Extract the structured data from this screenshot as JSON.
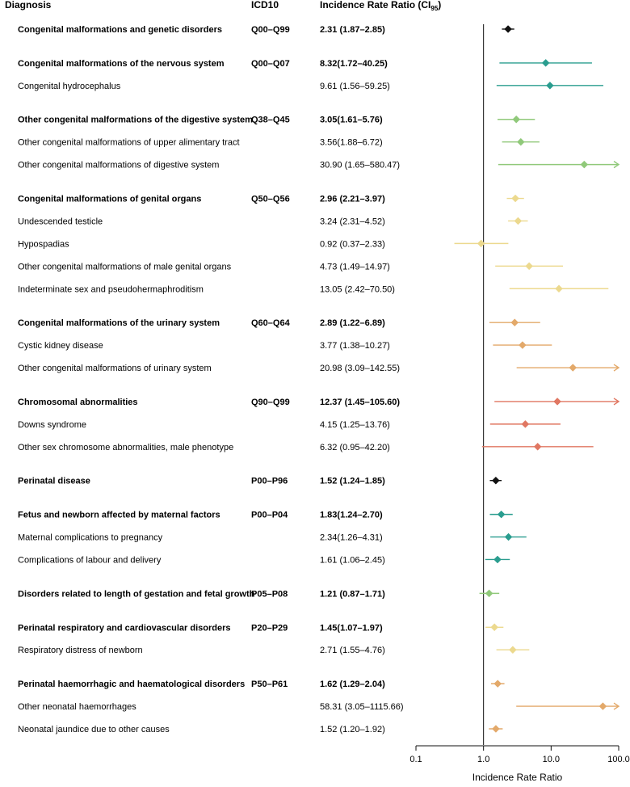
{
  "chart_data": {
    "type": "forest",
    "headers": {
      "diagnosis": "Diagnosis",
      "icd10": "ICD10",
      "irr": "Incidence Rate Ratio (CI",
      "irr_sub": "95",
      "irr_close": ")"
    },
    "x_axis": {
      "label": "Incidence Rate Ratio",
      "scale": "log10",
      "range": [
        0.1,
        100
      ],
      "reference_line": 1,
      "ticks": [
        0.1,
        1,
        10,
        100
      ],
      "tick_labels": [
        "0.1",
        "1.0",
        "10.0",
        "100.0"
      ]
    },
    "colors": {
      "total": "#111111",
      "teal": "#2a9d8f",
      "green": "#90c97a",
      "yellow": "#ecd98e",
      "orange": "#e3a96a",
      "red": "#e07762"
    },
    "rows": [
      {
        "label": "Congenital malformations and genetic disorders",
        "icd": "Q00–Q99",
        "ci_text": "2.31 (1.87–2.85)",
        "est": 2.31,
        "lo": 1.87,
        "hi": 2.85,
        "bold": true,
        "color": "total"
      },
      {
        "gap": true
      },
      {
        "label": "Congenital malformations of the nervous system",
        "icd": "Q00–Q07",
        "ci_text": "8.32(1.72–40.25)",
        "est": 8.32,
        "lo": 1.72,
        "hi": 40.25,
        "bold": true,
        "color": "teal"
      },
      {
        "label": "Congenital hydrocephalus",
        "icd": "",
        "ci_text": "9.61 (1.56–59.25)",
        "est": 9.61,
        "lo": 1.56,
        "hi": 59.25,
        "bold": false,
        "color": "teal"
      },
      {
        "gap": true
      },
      {
        "label": "Other congenital malformations of the digestive system",
        "icd": "Q38–Q45",
        "ci_text": "3.05(1.61–5.76)",
        "est": 3.05,
        "lo": 1.61,
        "hi": 5.76,
        "bold": true,
        "color": "green"
      },
      {
        "label": "Other congenital malformations of upper alimentary tract",
        "icd": "",
        "ci_text": "3.56(1.88–6.72)",
        "est": 3.56,
        "lo": 1.88,
        "hi": 6.72,
        "bold": false,
        "color": "green"
      },
      {
        "label": "Other congenital malformations of digestive system",
        "icd": "",
        "ci_text": "30.90 (1.65–580.47)",
        "est": 30.9,
        "lo": 1.65,
        "hi": 580.47,
        "bold": false,
        "color": "green"
      },
      {
        "gap": true
      },
      {
        "label": "Congenital malformations of genital organs",
        "icd": "Q50–Q56",
        "ci_text": "2.96 (2.21–3.97)",
        "est": 2.96,
        "lo": 2.21,
        "hi": 3.97,
        "bold": true,
        "color": "yellow"
      },
      {
        "label": "Undescended testicle",
        "icd": "",
        "ci_text": "3.24 (2.31–4.52)",
        "est": 3.24,
        "lo": 2.31,
        "hi": 4.52,
        "bold": false,
        "color": "yellow"
      },
      {
        "label": "Hypospadias",
        "icd": "",
        "ci_text": "0.92 (0.37–2.33)",
        "est": 0.92,
        "lo": 0.37,
        "hi": 2.33,
        "bold": false,
        "color": "yellow"
      },
      {
        "label": "Other congenital malformations of male genital organs",
        "icd": "",
        "ci_text": "4.73 (1.49–14.97)",
        "est": 4.73,
        "lo": 1.49,
        "hi": 14.97,
        "bold": false,
        "color": "yellow"
      },
      {
        "label": "Indeterminate sex and pseudohermaphroditism",
        "icd": "",
        "ci_text": "13.05 (2.42–70.50)",
        "est": 13.05,
        "lo": 2.42,
        "hi": 70.5,
        "bold": false,
        "color": "yellow"
      },
      {
        "gap": true
      },
      {
        "label": "Congenital malformations of the urinary system",
        "icd": "Q60–Q64",
        "ci_text": "2.89 (1.22–6.89)",
        "est": 2.89,
        "lo": 1.22,
        "hi": 6.89,
        "bold": true,
        "color": "orange"
      },
      {
        "label": "Cystic kidney disease",
        "icd": "",
        "ci_text": "3.77 (1.38–10.27)",
        "est": 3.77,
        "lo": 1.38,
        "hi": 10.27,
        "bold": false,
        "color": "orange"
      },
      {
        "label": "Other congenital malformations of urinary system",
        "icd": "",
        "ci_text": "20.98 (3.09–142.55)",
        "est": 20.98,
        "lo": 3.09,
        "hi": 142.55,
        "bold": false,
        "color": "orange"
      },
      {
        "gap": true
      },
      {
        "label": "Chromosomal abnormalities",
        "icd": "Q90–Q99",
        "ci_text": "12.37 (1.45–105.60)",
        "est": 12.37,
        "lo": 1.45,
        "hi": 105.6,
        "bold": true,
        "color": "red"
      },
      {
        "label": "Downs syndrome",
        "icd": "",
        "ci_text": "4.15 (1.25–13.76)",
        "est": 4.15,
        "lo": 1.25,
        "hi": 13.76,
        "bold": false,
        "color": "red"
      },
      {
        "label": "Other sex chromosome abnormalities, male phenotype",
        "icd": "",
        "ci_text": "6.32 (0.95–42.20)",
        "est": 6.32,
        "lo": 0.95,
        "hi": 42.2,
        "bold": false,
        "color": "red"
      },
      {
        "gap": true
      },
      {
        "label": "Perinatal disease",
        "icd": "P00–P96",
        "ci_text": "1.52 (1.24–1.85)",
        "est": 1.52,
        "lo": 1.24,
        "hi": 1.85,
        "bold": true,
        "color": "total"
      },
      {
        "gap": true
      },
      {
        "label": "Fetus and newborn affected by maternal factors",
        "icd": "P00–P04",
        "ci_text": "1.83(1.24–2.70)",
        "est": 1.83,
        "lo": 1.24,
        "hi": 2.7,
        "bold": true,
        "color": "teal"
      },
      {
        "label": "Maternal complications to pregnancy",
        "icd": "",
        "ci_text": "2.34(1.26–4.31)",
        "est": 2.34,
        "lo": 1.26,
        "hi": 4.31,
        "bold": false,
        "color": "teal"
      },
      {
        "label": "Complications of labour and delivery",
        "icd": "",
        "ci_text": "1.61 (1.06–2.45)",
        "est": 1.61,
        "lo": 1.06,
        "hi": 2.45,
        "bold": false,
        "color": "teal"
      },
      {
        "gap": true
      },
      {
        "label": "Disorders related to length of gestation and fetal growth",
        "icd": "P05–P08",
        "ci_text": "1.21 (0.87–1.71)",
        "est": 1.21,
        "lo": 0.87,
        "hi": 1.71,
        "bold": true,
        "color": "green"
      },
      {
        "gap": true
      },
      {
        "label": "Perinatal respiratory and cardiovascular disorders",
        "icd": "P20–P29",
        "ci_text": "1.45(1.07–1.97)",
        "est": 1.45,
        "lo": 1.07,
        "hi": 1.97,
        "bold": true,
        "color": "yellow"
      },
      {
        "label": "Respiratory distress of newborn",
        "icd": "",
        "ci_text": "2.71 (1.55–4.76)",
        "est": 2.71,
        "lo": 1.55,
        "hi": 4.76,
        "bold": false,
        "color": "yellow"
      },
      {
        "gap": true
      },
      {
        "label": "Perinatal haemorrhagic and haematological disorders",
        "icd": "P50–P61",
        "ci_text": "1.62 (1.29–2.04)",
        "est": 1.62,
        "lo": 1.29,
        "hi": 2.04,
        "bold": true,
        "color": "orange"
      },
      {
        "label": "Other neonatal haemorrhages",
        "icd": "",
        "ci_text": "58.31 (3.05–1115.66)",
        "est": 58.31,
        "lo": 3.05,
        "hi": 1115.66,
        "bold": false,
        "color": "orange"
      },
      {
        "label": "Neonatal jaundice due to other causes",
        "icd": "",
        "ci_text": "1.52 (1.20–1.92)",
        "est": 1.52,
        "lo": 1.2,
        "hi": 1.92,
        "bold": false,
        "color": "orange"
      }
    ]
  }
}
